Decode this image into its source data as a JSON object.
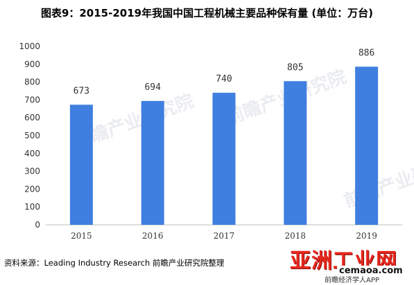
{
  "title": "图表9：2015-2019年我国中国工程机械主要品种保有量 (单位：万台)",
  "source": "资料来源：Leading Industry Research 前瞻产业研究院整理",
  "watermark": {
    "logo_text": "亚洲工业网",
    "url_text": "cemaoa.com",
    "app_text": "前瞻经济学人APP",
    "faint_text": "前瞻产业研究院"
  },
  "colors": {
    "bar": "#3f7fe0",
    "axis": "#bfbfbf",
    "text": "#333333",
    "logo": "#e8261c"
  },
  "chart_data": {
    "type": "bar",
    "categories": [
      "2015",
      "2016",
      "2017",
      "2018",
      "2019"
    ],
    "values": [
      673,
      694,
      740,
      805,
      886
    ],
    "data_labels": [
      "673",
      "694",
      "740",
      "805",
      "886"
    ],
    "ylim": [
      0,
      1000
    ],
    "yticks": [
      "0",
      "100",
      "200",
      "300",
      "400",
      "500",
      "600",
      "700",
      "800",
      "900",
      "1000"
    ],
    "xlabel": "",
    "ylabel": "",
    "grid": false
  }
}
